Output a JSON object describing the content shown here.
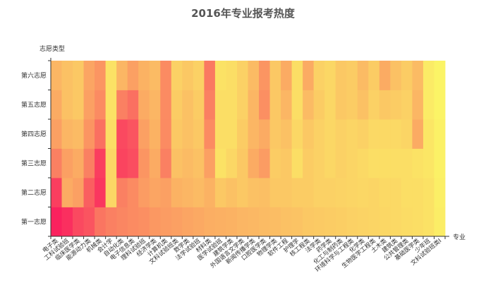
{
  "chart_data": {
    "type": "heatmap",
    "title": "2016年专业报考热度",
    "xlabel": "专业",
    "ylabel": "志愿类型",
    "categories": [
      "电子类",
      "工科试验班",
      "临床医学类",
      "能源动力类",
      "机械类",
      "会计学",
      "自动化类",
      "电子信息类",
      "理科试验班",
      "经济学类",
      "计算机类",
      "文科试验班类",
      "数学类",
      "法学试验班",
      "材料类",
      "医学试验班",
      "建筑学类",
      "外国语言文学类",
      "新闻传播学类",
      "口腔医学类",
      "物理学类",
      "软件工程",
      "护理学",
      "核工程类",
      "法学类",
      "药学类",
      "化工与制药类",
      "环境科学与工程类",
      "化学类",
      "生物医学工程类",
      "土木类",
      "建筑类",
      "公共管理类",
      "基础医学类",
      "少年班",
      "文科试验班类I"
    ],
    "x_tick_labels_shown": [
      "电子类",
      "工科试验班",
      "临床医学类",
      "能源动力类",
      "机械类",
      "会计学",
      "自动化类",
      "电子信息类",
      "理科试验班",
      "经济学类",
      "计算机类",
      "文科试验班类",
      "数学类",
      "法学试验班",
      "材料类",
      "医学试验班",
      "建筑学类",
      "外国语言文学类",
      "新闻传播学类",
      "口腔医学类",
      "物理学类",
      "软件工程",
      "护理学",
      "核工程类",
      "法学类",
      "药学类",
      "化工与制药类",
      "环境科学与工程类",
      "化学类",
      "生物医学工程类",
      "土木类",
      "建筑类",
      "公共管理类",
      "基础医学类",
      "少年班",
      "文科试验班类I"
    ],
    "y_categories": [
      "第一志愿",
      "第二志愿",
      "第三志愿",
      "第四志愿",
      "第五志愿",
      "第六志愿"
    ],
    "values": [
      [
        0.98,
        0.92,
        0.8,
        0.75,
        0.6,
        0.55,
        0.52,
        0.5,
        0.48,
        0.44,
        0.42,
        0.4,
        0.38,
        0.36,
        0.34,
        0.33,
        0.32,
        0.3,
        0.29,
        0.28,
        0.27,
        0.25,
        0.24,
        0.22,
        0.21,
        0.2,
        0.19,
        0.18,
        0.17,
        0.16,
        0.15,
        0.14,
        0.13,
        0.12,
        0.1,
        0.05
      ],
      [
        0.85,
        0.35,
        0.4,
        0.7,
        0.88,
        0.15,
        0.55,
        0.5,
        0.42,
        0.38,
        0.4,
        0.32,
        0.3,
        0.28,
        0.32,
        0.22,
        0.25,
        0.22,
        0.25,
        0.26,
        0.22,
        0.22,
        0.2,
        0.2,
        0.18,
        0.18,
        0.17,
        0.16,
        0.15,
        0.16,
        0.14,
        0.14,
        0.12,
        0.12,
        0.1,
        0.04
      ],
      [
        0.55,
        0.4,
        0.35,
        0.55,
        0.85,
        0.15,
        0.82,
        0.78,
        0.45,
        0.35,
        0.55,
        0.25,
        0.28,
        0.25,
        0.4,
        0.1,
        0.15,
        0.22,
        0.35,
        0.42,
        0.2,
        0.22,
        0.12,
        0.2,
        0.18,
        0.15,
        0.18,
        0.16,
        0.14,
        0.12,
        0.12,
        0.12,
        0.12,
        0.1,
        0.08,
        0.03
      ],
      [
        0.4,
        0.3,
        0.28,
        0.45,
        0.62,
        0.12,
        0.8,
        0.75,
        0.4,
        0.32,
        0.5,
        0.22,
        0.25,
        0.22,
        0.5,
        0.12,
        0.12,
        0.2,
        0.3,
        0.35,
        0.22,
        0.25,
        0.15,
        0.22,
        0.18,
        0.15,
        0.18,
        0.16,
        0.18,
        0.14,
        0.14,
        0.14,
        0.16,
        0.35,
        0.08,
        0.03
      ],
      [
        0.35,
        0.25,
        0.22,
        0.4,
        0.5,
        0.1,
        0.55,
        0.62,
        0.35,
        0.3,
        0.5,
        0.2,
        0.25,
        0.2,
        0.55,
        0.12,
        0.12,
        0.18,
        0.3,
        0.48,
        0.22,
        0.3,
        0.12,
        0.28,
        0.2,
        0.15,
        0.22,
        0.2,
        0.25,
        0.18,
        0.22,
        0.2,
        0.18,
        0.3,
        0.06,
        0.02
      ],
      [
        0.3,
        0.25,
        0.22,
        0.38,
        0.45,
        0.1,
        0.3,
        0.4,
        0.32,
        0.28,
        0.5,
        0.18,
        0.22,
        0.18,
        0.58,
        0.1,
        0.12,
        0.18,
        0.28,
        0.45,
        0.22,
        0.35,
        0.12,
        0.35,
        0.18,
        0.15,
        0.22,
        0.2,
        0.28,
        0.2,
        0.35,
        0.25,
        0.2,
        0.28,
        0.06,
        0.02
      ]
    ],
    "color_scale": [
      "#fbf866",
      "#fa1d5e"
    ],
    "grid": false,
    "legend": "none"
  }
}
